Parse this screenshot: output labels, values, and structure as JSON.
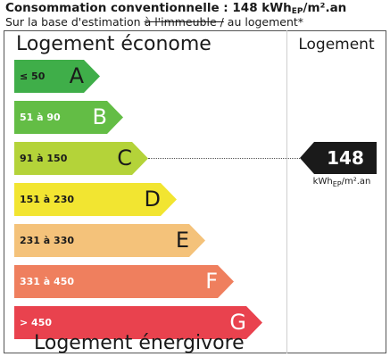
{
  "header": {
    "title_main": "Consommation conventionnelle : 148 kWh",
    "title_sub": "EP",
    "title_tail": "/m².an",
    "subtitle_prefix": "Sur la base d'estimation ",
    "subtitle_struck": "à l'immeuble /",
    "subtitle_suffix": " au logement*"
  },
  "scale": {
    "top_label": "Logement économe",
    "bottom_label": "Logement énergivore",
    "classes": [
      {
        "range": "≤ 50",
        "letter": "A",
        "color": "#3fae49",
        "width_frac": 0.3,
        "dark": true
      },
      {
        "range": "51 à 90",
        "letter": "B",
        "color": "#63bd45",
        "width_frac": 0.38,
        "dark": false
      },
      {
        "range": "91 à 150",
        "letter": "C",
        "color": "#b4d339",
        "width_frac": 0.47,
        "dark": true
      },
      {
        "range": "151 à 230",
        "letter": "D",
        "color": "#f2e531",
        "width_frac": 0.57,
        "dark": true
      },
      {
        "range": "231 à 330",
        "letter": "E",
        "color": "#f4c27a",
        "width_frac": 0.67,
        "dark": true
      },
      {
        "range": "331 à 450",
        "letter": "F",
        "color": "#ef7f5e",
        "width_frac": 0.77,
        "dark": false
      },
      {
        "range": "> 450",
        "letter": "G",
        "color": "#e9424e",
        "width_frac": 0.87,
        "dark": false
      }
    ]
  },
  "logement": {
    "column_title": "Logement",
    "value": "148",
    "unit_main": "kWh",
    "unit_sub": "EP",
    "unit_tail": "/m².an",
    "class_index": 2
  }
}
